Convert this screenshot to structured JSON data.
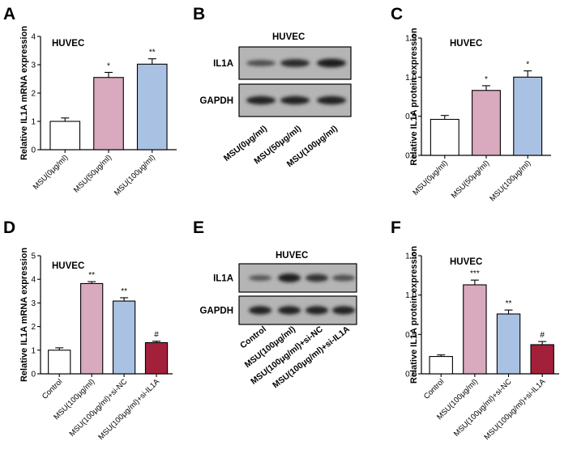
{
  "panels": {
    "A": {
      "letter": "A",
      "cell_label": "HUVEC"
    },
    "B": {
      "letter": "B",
      "cell_label": "HUVEC"
    },
    "C": {
      "letter": "C",
      "cell_label": "HUVEC"
    },
    "D": {
      "letter": "D",
      "cell_label": "HUVEC"
    },
    "E": {
      "letter": "E",
      "cell_label": "HUVEC"
    },
    "F": {
      "letter": "F",
      "cell_label": "HUVEC"
    }
  },
  "chart_data": [
    {
      "id": "A",
      "type": "bar",
      "title": "",
      "xlabel": "",
      "ylabel": "Relative IL1A mRNA expression",
      "ylim": [
        0,
        4
      ],
      "yticks": [
        "0",
        "1",
        "2",
        "3",
        "4"
      ],
      "categories": [
        "MSU(0μg/ml)",
        "MSU(50μg/ml)",
        "MSU(100μg/ml)"
      ],
      "values": [
        1.0,
        2.55,
        3.02
      ],
      "errors": [
        0.12,
        0.18,
        0.19
      ],
      "significance": [
        "",
        "*",
        "**"
      ],
      "colors": [
        "#ffffff",
        "#d9a9be",
        "#a9c1e3"
      ],
      "grid": false
    },
    {
      "id": "C",
      "type": "bar",
      "title": "",
      "xlabel": "",
      "ylabel": "Relative IL1A protein expression",
      "ylim": [
        0,
        1.5
      ],
      "yticks": [
        "0.0",
        "0.5",
        "1.0",
        "1.5"
      ],
      "categories": [
        "MSU(0μg/ml)",
        "MSU(50μg/ml)",
        "MSU(100μg/ml)"
      ],
      "values": [
        0.46,
        0.83,
        1.0
      ],
      "errors": [
        0.05,
        0.06,
        0.08
      ],
      "significance": [
        "",
        "*",
        "*"
      ],
      "colors": [
        "#ffffff",
        "#d9a9be",
        "#a9c1e3"
      ],
      "grid": false
    },
    {
      "id": "D",
      "type": "bar",
      "title": "",
      "xlabel": "",
      "ylabel": "Relative IL1A mRNA expression",
      "ylim": [
        0,
        5
      ],
      "yticks": [
        "0",
        "1",
        "2",
        "3",
        "4",
        "5"
      ],
      "categories": [
        "Control",
        "MSU(100μg/ml)",
        "MSU(100μg/ml)+si-NC",
        "MSU(100μg/ml)+si-IL1A"
      ],
      "values": [
        1.0,
        3.82,
        3.08,
        1.32
      ],
      "errors": [
        0.1,
        0.08,
        0.14,
        0.06
      ],
      "significance": [
        "",
        "**",
        "**",
        "#"
      ],
      "colors": [
        "#ffffff",
        "#d9a9be",
        "#a9c1e3",
        "#a3203a"
      ],
      "grid": false
    },
    {
      "id": "F",
      "type": "bar",
      "title": "",
      "xlabel": "",
      "ylabel": "Relative IL1A protein expression",
      "ylim": [
        0,
        1.5
      ],
      "yticks": [
        "0.0",
        "0.5",
        "1.0",
        "1.5"
      ],
      "categories": [
        "Control",
        "MSU(100μg/ml)",
        "MSU(100μg/ml)+si-NC",
        "MSU(100μg/ml)+si-IL1A"
      ],
      "values": [
        0.22,
        1.13,
        0.76,
        0.37
      ],
      "errors": [
        0.02,
        0.06,
        0.05,
        0.04
      ],
      "significance": [
        "",
        "***",
        "**",
        "#"
      ],
      "colors": [
        "#ffffff",
        "#d9a9be",
        "#a9c1e3",
        "#a3203a"
      ],
      "grid": false
    }
  ],
  "blots": [
    {
      "id": "B",
      "rows": [
        "IL1A",
        "GAPDH"
      ],
      "lanes": [
        "MSU(0μg/ml)",
        "MSU(50μg/ml)",
        "MSU(100μg/ml)"
      ],
      "band_intensity": [
        [
          0.45,
          0.8,
          0.95
        ],
        [
          0.9,
          0.9,
          0.9
        ]
      ]
    },
    {
      "id": "E",
      "rows": [
        "IL1A",
        "GAPDH"
      ],
      "lanes": [
        "Control",
        "MSU(100μg/ml)",
        "MSU(100μg/ml)+si-NC",
        "MSU(100μg/ml)+si-IL1A"
      ],
      "band_intensity": [
        [
          0.35,
          0.95,
          0.75,
          0.45
        ],
        [
          0.9,
          0.9,
          0.9,
          0.88
        ]
      ]
    }
  ]
}
